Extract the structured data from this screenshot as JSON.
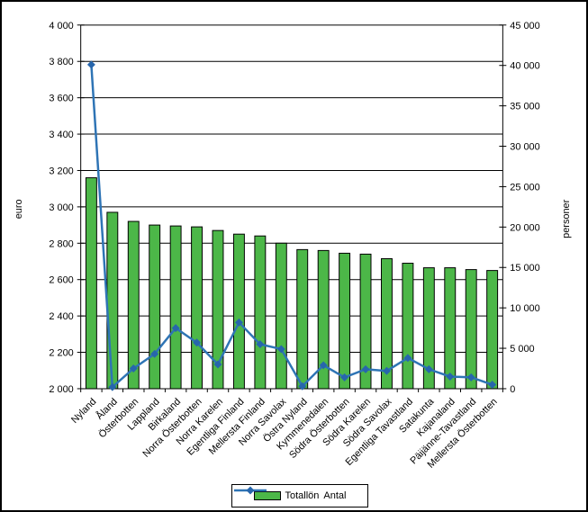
{
  "chart_data": {
    "type": "combo",
    "title": "",
    "categories": [
      "Nyland",
      "Åland",
      "Österbotten",
      "Lappland",
      "Birkaland",
      "Norra Österbotten",
      "Norra Karelen",
      "Egentliga Finland",
      "Mellersta Finland",
      "Norra Savolax",
      "Östra Nyland",
      "Kymmenedalen",
      "Södra Österbotten",
      "Södra Karelen",
      "Södra Savolax",
      "Egentliga Tavastland",
      "Satakunta",
      "Kajanaland",
      "Päijänne-Tavastland",
      "Mellersta Österbotten"
    ],
    "series": [
      {
        "name": "Totallön",
        "chart_type": "bar",
        "axis": "left",
        "values": [
          3160,
          2970,
          2920,
          2900,
          2895,
          2890,
          2870,
          2850,
          2840,
          2800,
          2765,
          2760,
          2745,
          2740,
          2715,
          2690,
          2665,
          2665,
          2655,
          2650
        ]
      },
      {
        "name": "Antal",
        "chart_type": "line",
        "axis": "right",
        "values": [
          40100,
          200,
          2500,
          4300,
          7500,
          5700,
          3000,
          8200,
          5500,
          4900,
          300,
          2900,
          1400,
          2400,
          2200,
          3800,
          2400,
          1500,
          1400,
          500
        ]
      }
    ],
    "ylabel_left": "euro",
    "ylabel_right": "personer",
    "xlabel": "",
    "left_axis": {
      "min": 2000,
      "max": 4000,
      "step": 200,
      "tick_labels": [
        "4 000",
        "3 800",
        "3 600",
        "3 400",
        "3 200",
        "3 000",
        "2 800",
        "2 600",
        "2 400",
        "2 200",
        "2 000"
      ]
    },
    "right_axis": {
      "min": 0,
      "max": 45000,
      "step": 5000,
      "tick_labels": [
        "45 000",
        "40 000",
        "35 000",
        "30 000",
        "25 000",
        "20 000",
        "15 000",
        "10 000",
        "5 000",
        "0"
      ]
    },
    "grid": "horizontal",
    "legend_position": "bottom-center",
    "colors": {
      "bar_fill": "#4CB748",
      "bar_border": "#000000",
      "line": "#2E74B5",
      "marker": "#2766AC",
      "grid": "#000000",
      "axis": "#000000",
      "background": "#FFFFFF",
      "frame_border": "#000000"
    }
  }
}
